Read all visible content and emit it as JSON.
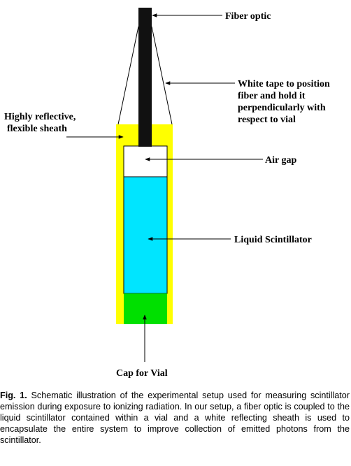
{
  "labels": {
    "fiber_optic": "Fiber optic",
    "white_tape": [
      "White tape to position",
      "fiber and hold it",
      "perpendicularly with",
      "respect to vial"
    ],
    "sheath": [
      "Highly reflective,",
      "flexible sheath"
    ],
    "air_gap": "Air gap",
    "liquid": "Liquid Scintillator",
    "cap": "Cap for Vial"
  },
  "caption": {
    "figure_label": "Fig. 1.",
    "text": "Schematic illustration of the experimental setup used for measuring scintillator emission during exposure to ionizing radiation. In our setup, a fiber optic is coupled to the liquid scintillator contained within a vial and a white reflecting sheath is used to encapsulate the entire system to improve collection of emitted photons from the scintillator."
  },
  "colors": {
    "sheath": "#ffff00",
    "air_gap": "#ffffff",
    "liquid": "#00e5ff",
    "cap": "#00e000",
    "fiber": "#111111"
  }
}
